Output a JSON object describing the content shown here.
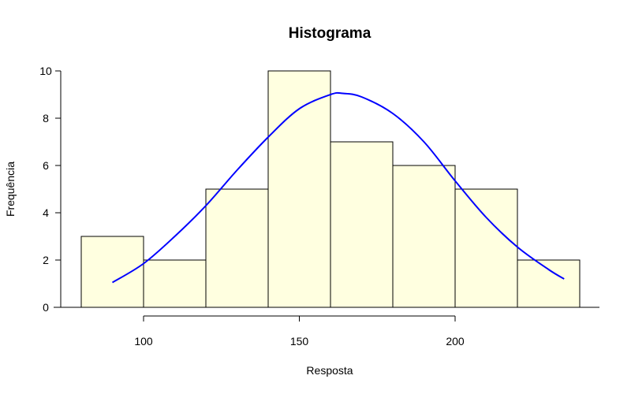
{
  "chart_data": {
    "type": "bar",
    "title": "Histograma",
    "xlabel": "Resposta",
    "ylabel": "Frequência",
    "bins": [
      {
        "start": 80,
        "end": 100,
        "count": 3
      },
      {
        "start": 100,
        "end": 120,
        "count": 2
      },
      {
        "start": 120,
        "end": 140,
        "count": 5
      },
      {
        "start": 140,
        "end": 160,
        "count": 10
      },
      {
        "start": 160,
        "end": 180,
        "count": 7
      },
      {
        "start": 180,
        "end": 200,
        "count": 6
      },
      {
        "start": 200,
        "end": 220,
        "count": 5
      },
      {
        "start": 220,
        "end": 240,
        "count": 2
      }
    ],
    "x_ticks": [
      100,
      150,
      200
    ],
    "y_ticks": [
      0,
      2,
      4,
      6,
      8,
      10
    ],
    "xlim": [
      72,
      248
    ],
    "ylim": [
      0,
      10
    ],
    "bar_fill": "#ffffe0",
    "bar_stroke": "#000000",
    "curve": {
      "type": "normal-density-overlay",
      "color": "#0000ff",
      "x_range": [
        90,
        235
      ],
      "peak_x": 164,
      "peak_y": 9.05,
      "points": [
        [
          90,
          1.05
        ],
        [
          100,
          1.85
        ],
        [
          110,
          3.0
        ],
        [
          120,
          4.3
        ],
        [
          130,
          5.8
        ],
        [
          140,
          7.2
        ],
        [
          150,
          8.4
        ],
        [
          160,
          9.0
        ],
        [
          164,
          9.05
        ],
        [
          170,
          8.9
        ],
        [
          180,
          8.2
        ],
        [
          190,
          7.0
        ],
        [
          200,
          5.35
        ],
        [
          210,
          3.8
        ],
        [
          220,
          2.55
        ],
        [
          230,
          1.6
        ],
        [
          235,
          1.2
        ]
      ]
    }
  }
}
